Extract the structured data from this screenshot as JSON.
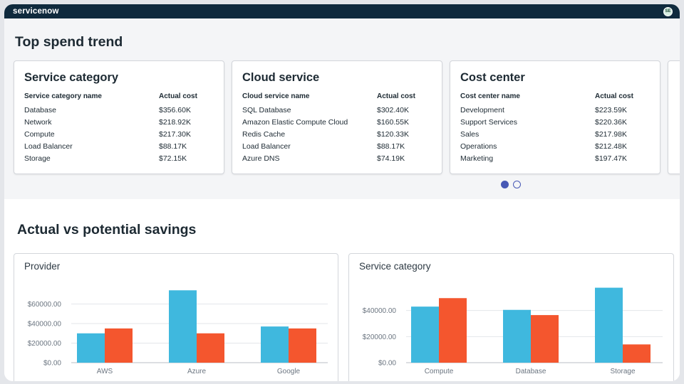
{
  "app": {
    "logo": "servicenow",
    "avatar_initials": "SE"
  },
  "top_spend": {
    "title": "Top spend trend",
    "cards": [
      {
        "title": "Service category",
        "col_name": "Service category name",
        "col_cost": "Actual cost",
        "rows": [
          {
            "name": "Database",
            "cost": "$356.60K"
          },
          {
            "name": "Network",
            "cost": "$218.92K"
          },
          {
            "name": "Compute",
            "cost": "$217.30K"
          },
          {
            "name": "Load Balancer",
            "cost": "$88.17K"
          },
          {
            "name": "Storage",
            "cost": "$72.15K"
          }
        ]
      },
      {
        "title": "Cloud service",
        "col_name": "Cloud service name",
        "col_cost": "Actual cost",
        "rows": [
          {
            "name": "SQL Database",
            "cost": "$302.40K"
          },
          {
            "name": "Amazon Elastic Compute Cloud",
            "cost": "$160.55K"
          },
          {
            "name": "Redis Cache",
            "cost": "$120.33K"
          },
          {
            "name": "Load Balancer",
            "cost": "$88.17K"
          },
          {
            "name": "Azure DNS",
            "cost": "$74.19K"
          }
        ]
      },
      {
        "title": "Cost center",
        "col_name": "Cost center name",
        "col_cost": "Actual cost",
        "rows": [
          {
            "name": "Development",
            "cost": "$223.59K"
          },
          {
            "name": "Support Services",
            "cost": "$220.36K"
          },
          {
            "name": "Sales",
            "cost": "$217.98K"
          },
          {
            "name": "Operations",
            "cost": "$212.48K"
          },
          {
            "name": "Marketing",
            "cost": "$197.47K"
          }
        ]
      }
    ],
    "pagination": {
      "pages": 2,
      "current": 1
    }
  },
  "savings": {
    "title": "Actual vs potential savings"
  },
  "colors": {
    "actual": "#3fb8de",
    "potential": "#f4562e"
  },
  "chart_data": [
    {
      "type": "bar",
      "title": "Provider",
      "categories": [
        "AWS",
        "Azure",
        "Google"
      ],
      "series": [
        {
          "values": [
            30000,
            74000,
            37000
          ]
        },
        {
          "values": [
            35000,
            30000,
            35000
          ]
        }
      ],
      "ylim": [
        0,
        80000
      ],
      "yticks": [
        "$0.00",
        "$20000.00",
        "$40000.00",
        "$60000.00"
      ],
      "ytick_values": [
        0,
        20000,
        40000,
        60000
      ],
      "grid": true
    },
    {
      "type": "bar",
      "title": "Service category",
      "categories": [
        "Compute",
        "Database",
        "Storage"
      ],
      "series": [
        {
          "values": [
            43000,
            40500,
            57500
          ]
        },
        {
          "values": [
            49500,
            36500,
            14000
          ]
        }
      ],
      "ylim": [
        0,
        60000
      ],
      "yticks": [
        "$0.00",
        "$20000.00",
        "$40000.00"
      ],
      "ytick_values": [
        0,
        20000,
        40000
      ],
      "grid": true
    }
  ]
}
